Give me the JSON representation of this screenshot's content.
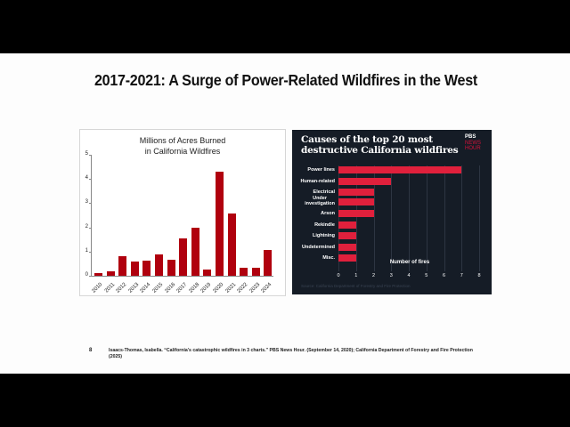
{
  "slide": {
    "title": "2017-2021: A Surge of Power-Related Wildfires in the West",
    "page_number": "8",
    "footnote": "Isaacs-Thomas, Isabella. “California's catastrophic wildfires in 3 charts.” PBS News Hour. (September 14, 2020); California Department of Forestry and Fire Protection (2025)"
  },
  "left_chart": {
    "title_line1": "Millions of Acres Burned",
    "title_line2": "in California Wildfires",
    "bar_color": "#b0000e"
  },
  "right_chart": {
    "title_line1": "Causes of the top 20 most",
    "title_line2": "destructive California wildfires",
    "logo_line1": "PBS",
    "logo_line2": "NEWS",
    "logo_line3": "HOUR",
    "xlabel": "Number of fires",
    "source": "Source: California Department of Forestry and Fire Protection",
    "bar_color": "#e0203c",
    "background": "#151c26"
  },
  "chart_data": [
    {
      "type": "bar",
      "title": "Millions of Acres Burned in California Wildfires",
      "xlabel": "",
      "ylabel": "",
      "ylim": [
        0,
        5
      ],
      "yticks": [
        "0",
        "1",
        "2",
        "3",
        "4",
        "5"
      ],
      "categories": [
        "2010",
        "2011",
        "2012",
        "2013",
        "2014",
        "2015",
        "2016",
        "2017",
        "2018",
        "2019",
        "2020",
        "2021",
        "2022",
        "2023",
        "2024"
      ],
      "values": [
        0.11,
        0.2,
        0.82,
        0.6,
        0.62,
        0.88,
        0.67,
        1.55,
        1.98,
        0.26,
        4.3,
        2.57,
        0.33,
        0.33,
        1.05
      ],
      "grid": false,
      "legend": null
    },
    {
      "type": "bar",
      "orientation": "horizontal",
      "title": "Causes of the top 20 most destructive California wildfires",
      "xlabel": "Number of fires",
      "ylabel": "",
      "xlim": [
        0,
        8
      ],
      "xticks": [
        "0",
        "1",
        "2",
        "3",
        "4",
        "5",
        "6",
        "7",
        "8"
      ],
      "categories": [
        "Power lines",
        "Human-related",
        "Electrical",
        "Under investigation",
        "Arson",
        "Rekindle",
        "Lightning",
        "Undetermined",
        "Misc."
      ],
      "values": [
        7,
        3,
        2,
        2,
        2,
        1,
        1,
        1,
        1
      ],
      "grid": true,
      "source": "Source: California Department of Forestry and Fire Protection"
    }
  ]
}
